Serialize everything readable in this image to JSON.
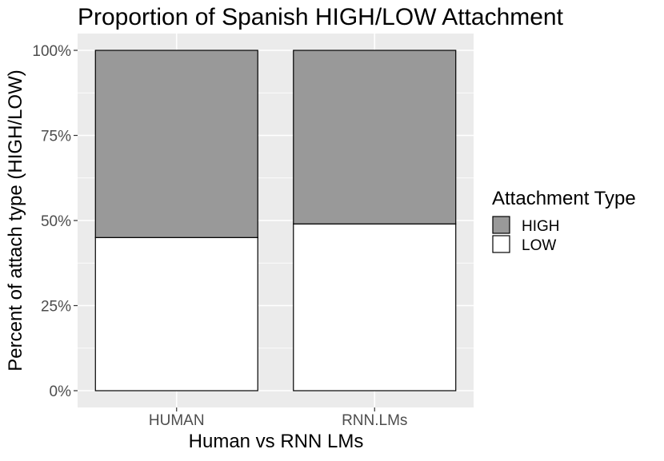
{
  "chart_data": {
    "type": "bar",
    "stacked": true,
    "percent": true,
    "title": "Proportion of Spanish HIGH/LOW Attachment",
    "xlabel": "Human vs RNN LMs",
    "ylabel": "Percent of attach type (HIGH/LOW)",
    "categories": [
      "HUMAN",
      "RNN.LMs"
    ],
    "series": [
      {
        "name": "LOW",
        "values": [
          0.45,
          0.49
        ],
        "color": "#ffffff"
      },
      {
        "name": "HIGH",
        "values": [
          0.55,
          0.51
        ],
        "color": "#999999"
      }
    ],
    "ylim": [
      0,
      1
    ],
    "yticks": [
      0,
      0.25,
      0.5,
      0.75,
      1
    ],
    "ytick_labels": [
      "0%",
      "25%",
      "50%",
      "75%",
      "100%"
    ],
    "grid": true,
    "panel_background": "#ebebeb",
    "legend": {
      "title": "Attachment Type",
      "placement": "right",
      "entries": [
        {
          "label": "HIGH",
          "color": "#999999"
        },
        {
          "label": "LOW",
          "color": "#ffffff"
        }
      ]
    }
  }
}
